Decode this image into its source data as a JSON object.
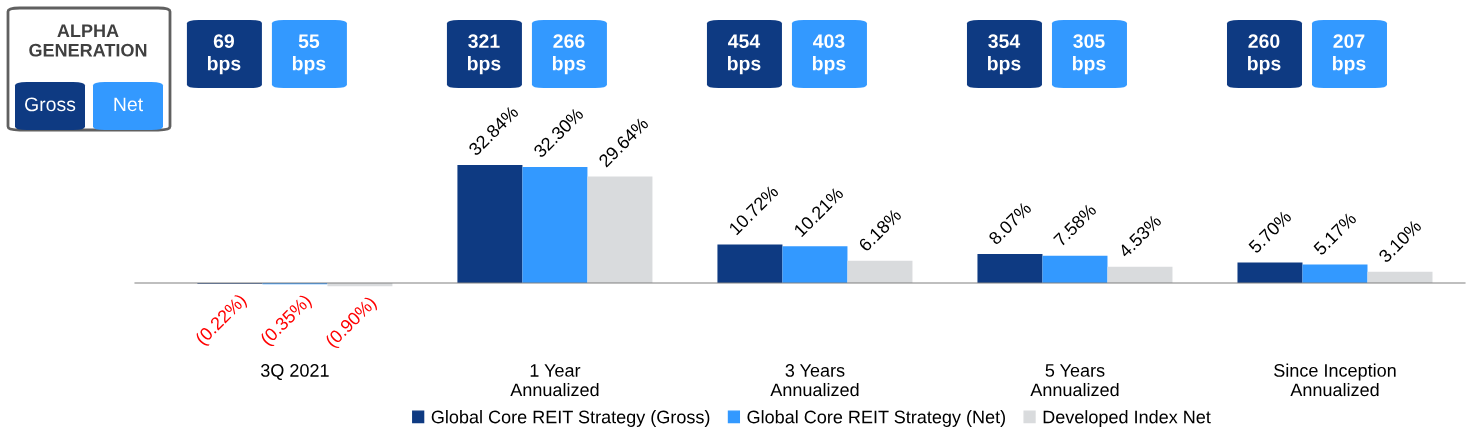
{
  "chart_data": {
    "type": "bar",
    "categories": [
      "3Q 2021",
      "1 Year\nAnnualized",
      "3 Years\nAnnualized",
      "5 Years\nAnnualized",
      "Since Inception\nAnnualized"
    ],
    "series": [
      {
        "name": "Global Core REIT Strategy (Gross)",
        "color": "#0e3a82",
        "values": [
          -0.22,
          32.84,
          10.72,
          8.07,
          5.7
        ],
        "value_labels": [
          "(0.22%)",
          "32.84%",
          "10.72%",
          "8.07%",
          "5.70%"
        ]
      },
      {
        "name": "Global Core REIT Strategy (Net)",
        "color": "#3399ff",
        "values": [
          -0.35,
          32.3,
          10.21,
          7.58,
          5.17
        ],
        "value_labels": [
          "(0.35%)",
          "32.30%",
          "10.21%",
          "7.58%",
          "5.17%"
        ]
      },
      {
        "name": "Developed Index Net",
        "color": "#d9dbdd",
        "values": [
          -0.9,
          29.64,
          6.18,
          4.53,
          3.1
        ],
        "value_labels": [
          "(0.90%)",
          "29.64%",
          "6.18%",
          "4.53%",
          "3.10%"
        ]
      }
    ],
    "annotations": [
      "ALPHA\nGENERATION",
      "Gross",
      "Net",
      "69\nbps",
      "55\nbps",
      "321\nbps",
      "266\nbps",
      "454\nbps",
      "403\nbps",
      "354\nbps",
      "305\nbps",
      "260\nbps",
      "207\nbps"
    ],
    "legend": "bottom"
  }
}
